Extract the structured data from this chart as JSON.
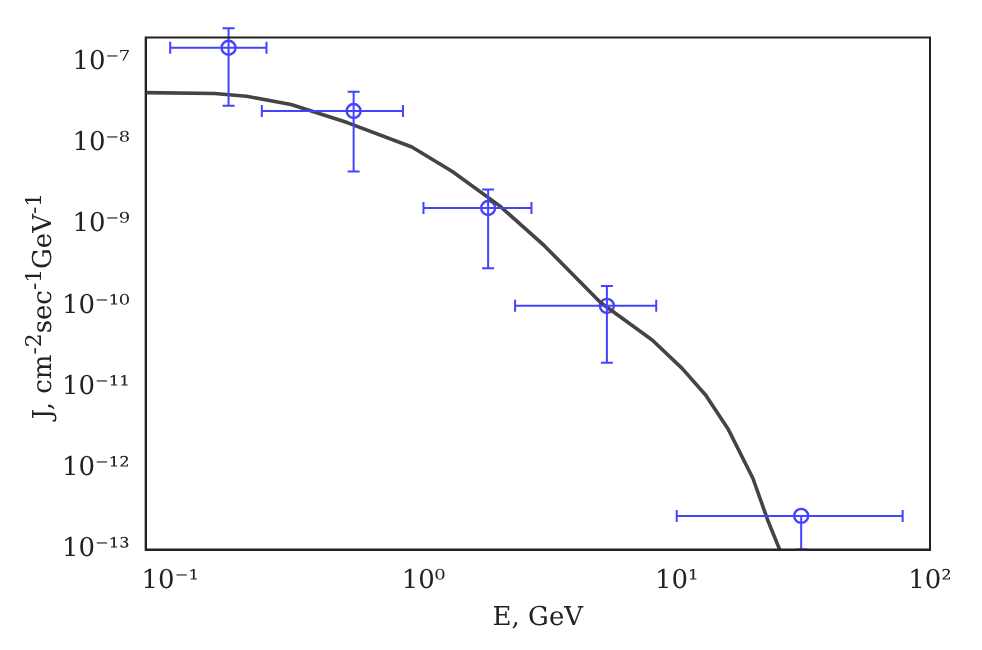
{
  "chart_data": {
    "type": "scatter",
    "xlabel": "E, GeV",
    "ylabel": "J, cm$^{-2}$sec$^{-1}$GeV$^{-1}$",
    "log": "xy",
    "grid": false,
    "xlim": [
      0.08,
      100
    ],
    "ylim": [
      1e-13,
      2e-07
    ],
    "xticks": [
      {
        "value": 0.1,
        "label": "10⁻¹"
      },
      {
        "value": 1,
        "label": "10⁰"
      },
      {
        "value": 10,
        "label": "10¹"
      },
      {
        "value": 100,
        "label": "10²"
      }
    ],
    "yticks": [
      {
        "value": 1e-13,
        "label": "10⁻¹³"
      },
      {
        "value": 1e-12,
        "label": "10⁻¹²"
      },
      {
        "value": 1e-11,
        "label": "10⁻¹¹"
      },
      {
        "value": 1e-10,
        "label": "10⁻¹⁰"
      },
      {
        "value": 1e-09,
        "label": "10⁻⁹"
      },
      {
        "value": 1e-08,
        "label": "10⁻⁸"
      },
      {
        "value": 1e-07,
        "label": "10⁻⁷"
      }
    ],
    "series": [
      {
        "type": "line",
        "color": "#444444",
        "marker": "none",
        "line_style": "solid",
        "x": [
          0.08,
          0.15,
          0.2,
          0.3,
          0.5,
          0.9,
          1.3,
          2,
          3,
          5,
          8,
          10.5,
          13,
          16,
          20,
          23,
          25.5
        ],
        "values": [
          4.2e-08,
          4.1e-08,
          3.8e-08,
          3e-08,
          1.8e-08,
          9e-09,
          4.5e-09,
          1.7e-09,
          5.5e-10,
          1.1e-10,
          3.8e-11,
          1.7e-11,
          8e-12,
          3e-12,
          7.5e-13,
          2.2e-13,
          1e-13
        ]
      },
      {
        "color": "#4444ff",
        "marker": "circle",
        "x": [
          0.17,
          0.53,
          1.8,
          5.3,
          31
        ],
        "values": [
          1.5e-07,
          2.5e-08,
          1.6e-09,
          1e-10,
          2.6e-13
        ],
        "errors": [
          [
            2.9e-08,
            2.6e-07
          ],
          [
            4.5e-09,
            4.3e-08
          ],
          [
            2.9e-10,
            2.7e-09
          ],
          [
            2e-11,
            1.75e-10
          ],
          [
            1e-13,
            2.6e-13
          ]
        ],
        "xerrors": [
          [
            0.1,
            0.24
          ],
          [
            0.23,
            0.83
          ],
          [
            1,
            2.67
          ],
          [
            2.3,
            8.3
          ],
          [
            10,
            78
          ]
        ]
      }
    ]
  }
}
